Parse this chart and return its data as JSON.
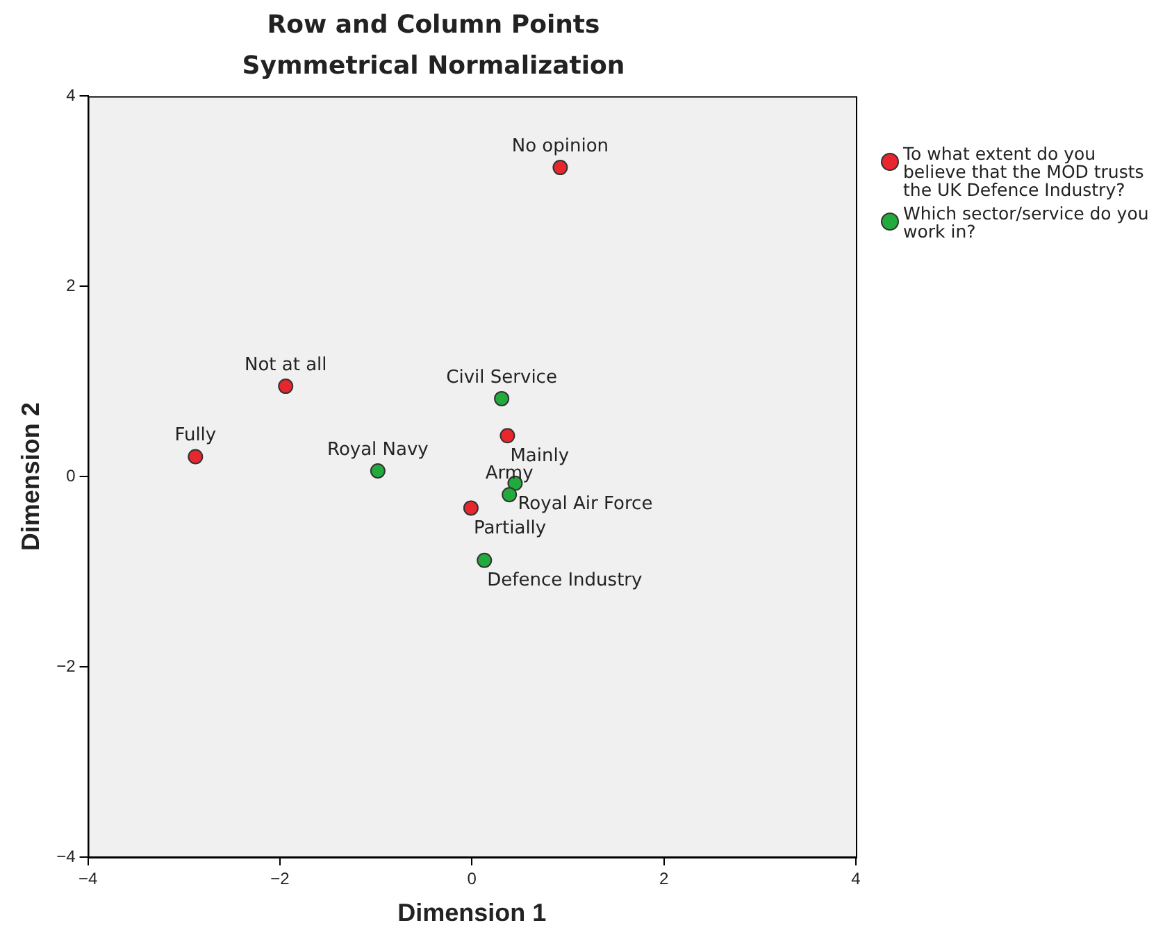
{
  "chart_data": {
    "type": "scatter",
    "title": "Row and Column Points",
    "subtitle": "Symmetrical Normalization",
    "xlabel": "Dimension 1",
    "ylabel": "Dimension 2",
    "xlim": [
      -4,
      4
    ],
    "xticks": [
      -4,
      -2,
      0,
      2,
      4
    ],
    "ylim": [
      -4,
      4
    ],
    "yticks": [
      -4,
      -2,
      0,
      2,
      4
    ],
    "grid": false,
    "legend": "top right",
    "marker": "circle",
    "series": [
      {
        "name": "To what extent do you believe that the MOD trusts the UK Defence Industry?",
        "color": "#e8262e",
        "x": [
          0.92,
          -1.94,
          -2.88,
          0.37,
          -0.01
        ],
        "values": [
          3.25,
          0.95,
          0.21,
          0.43,
          -0.33
        ],
        "value_labels": [
          "No opinion",
          "Not at all",
          "Fully",
          "Mainly",
          "Partially"
        ]
      },
      {
        "name": "Which sector/service do you work in?",
        "color": "#22aa3c",
        "x": [
          0.31,
          -0.98,
          0.45,
          0.39,
          0.13
        ],
        "values": [
          0.82,
          0.06,
          -0.07,
          -0.19,
          -0.88
        ],
        "value_labels": [
          "Civil Service",
          "Royal Navy",
          "Royal Air Force",
          "Army",
          "Defence Industry"
        ]
      }
    ]
  }
}
